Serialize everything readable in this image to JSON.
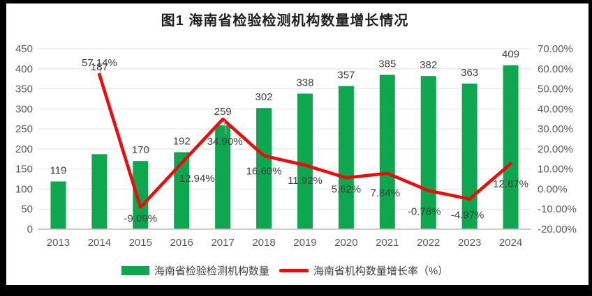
{
  "window": {
    "frame_color": "#000000",
    "canvas_color": "#ffffff"
  },
  "chart_data": {
    "type": "combo-bar-line",
    "title": "图1 海南省检验检测机构数量增长情况",
    "categories": [
      "2013",
      "2014",
      "2015",
      "2016",
      "2017",
      "2018",
      "2019",
      "2020",
      "2021",
      "2022",
      "2023",
      "2024"
    ],
    "series": [
      {
        "name": "海南省检验检测机构数量",
        "chart": "bar",
        "axis": "left",
        "color": "#0EA750",
        "values": [
          119,
          187,
          170,
          192,
          259,
          302,
          338,
          357,
          385,
          382,
          363,
          409
        ]
      },
      {
        "name": "海南省机构数量增长率（%）",
        "chart": "line",
        "axis": "right",
        "color": "#EE0B0B",
        "start_index": 1,
        "values": [
          57.14,
          -9.09,
          12.94,
          34.9,
          16.6,
          11.92,
          5.62,
          7.84,
          -0.78,
          -4.97,
          12.67
        ],
        "point_labels": [
          "57.14%",
          "-9.09%",
          "12.94%",
          "34.90%",
          "16.60%",
          "11.92%",
          "5.62%",
          "7.84%",
          "-0.78%",
          "-4.97%",
          "12.67%"
        ]
      }
    ],
    "left_axis": {
      "min": 0,
      "max": 450,
      "step": 50,
      "ticks": [
        "0",
        "50",
        "100",
        "150",
        "200",
        "250",
        "300",
        "350",
        "400",
        "450"
      ]
    },
    "right_axis": {
      "min": -20,
      "max": 70,
      "step": 10,
      "ticks": [
        "-20.00%",
        "-10.00%",
        "0.00%",
        "10.00%",
        "20.00%",
        "30.00%",
        "40.00%",
        "50.00%",
        "60.00%",
        "70.00%"
      ]
    },
    "grid": true,
    "legend_position": "bottom",
    "styles": {
      "gridline_color": "#E2E2E2",
      "axis_line_color": "#BDBDBD",
      "tick_label_color": "#595959",
      "data_label_color": "#3F3F3F",
      "leader_line_color": "#A6A6A6"
    }
  }
}
